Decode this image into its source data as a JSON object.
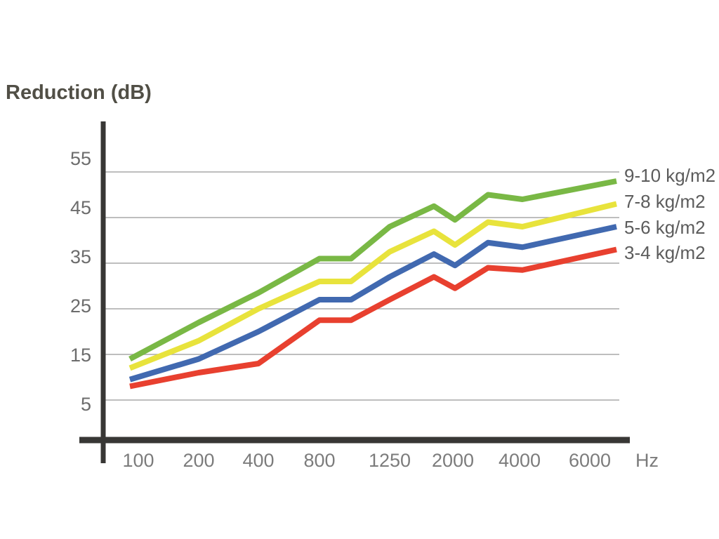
{
  "chart_data": {
    "type": "line",
    "title": "Reduction (dB)",
    "x_axis": {
      "unit_label": "Hz",
      "tick_labels": [
        "100",
        "200",
        "400",
        "800",
        "1250",
        "2000",
        "4000",
        "6000"
      ]
    },
    "y_axis": {
      "tick_labels": [
        "55",
        "45",
        "35",
        "25",
        "15",
        "5"
      ],
      "tick_values": [
        55,
        45,
        35,
        25,
        15,
        5
      ],
      "min": 0,
      "max": 60
    },
    "x_points_hz": [
      100,
      200,
      400,
      800,
      1000,
      1250,
      1600,
      2000,
      2500,
      4000,
      6300
    ],
    "series": [
      {
        "name": "9-10 kg/m2",
        "color": "#79b845",
        "values": [
          14,
          22,
          28.5,
          36,
          36,
          43,
          47.5,
          44.5,
          50,
          49,
          53
        ]
      },
      {
        "name": "7-8 kg/m2",
        "color": "#e8e33c",
        "values": [
          12,
          18,
          25,
          31,
          31,
          37.5,
          42,
          39,
          44,
          43,
          48
        ]
      },
      {
        "name": "5-6 kg/m2",
        "color": "#4169b0",
        "values": [
          9.5,
          14,
          20,
          27,
          27,
          32,
          37,
          34.5,
          39.5,
          38.5,
          43
        ]
      },
      {
        "name": "3-4 kg/m2",
        "color": "#e8402f",
        "values": [
          8,
          11,
          13,
          22.5,
          22.5,
          27,
          32,
          29.5,
          34,
          33.5,
          38
        ]
      }
    ],
    "legend_position": "right",
    "grid": "horizontal-only"
  },
  "colors": {
    "axis": "#383735",
    "gridline": "#a9a9a9",
    "title_text": "#514f46",
    "x_tick_text": "#7c7c7c",
    "y_tick_text": "#6c6c6c",
    "legend_text": "#5c5c5c",
    "background": "#ffffff"
  }
}
